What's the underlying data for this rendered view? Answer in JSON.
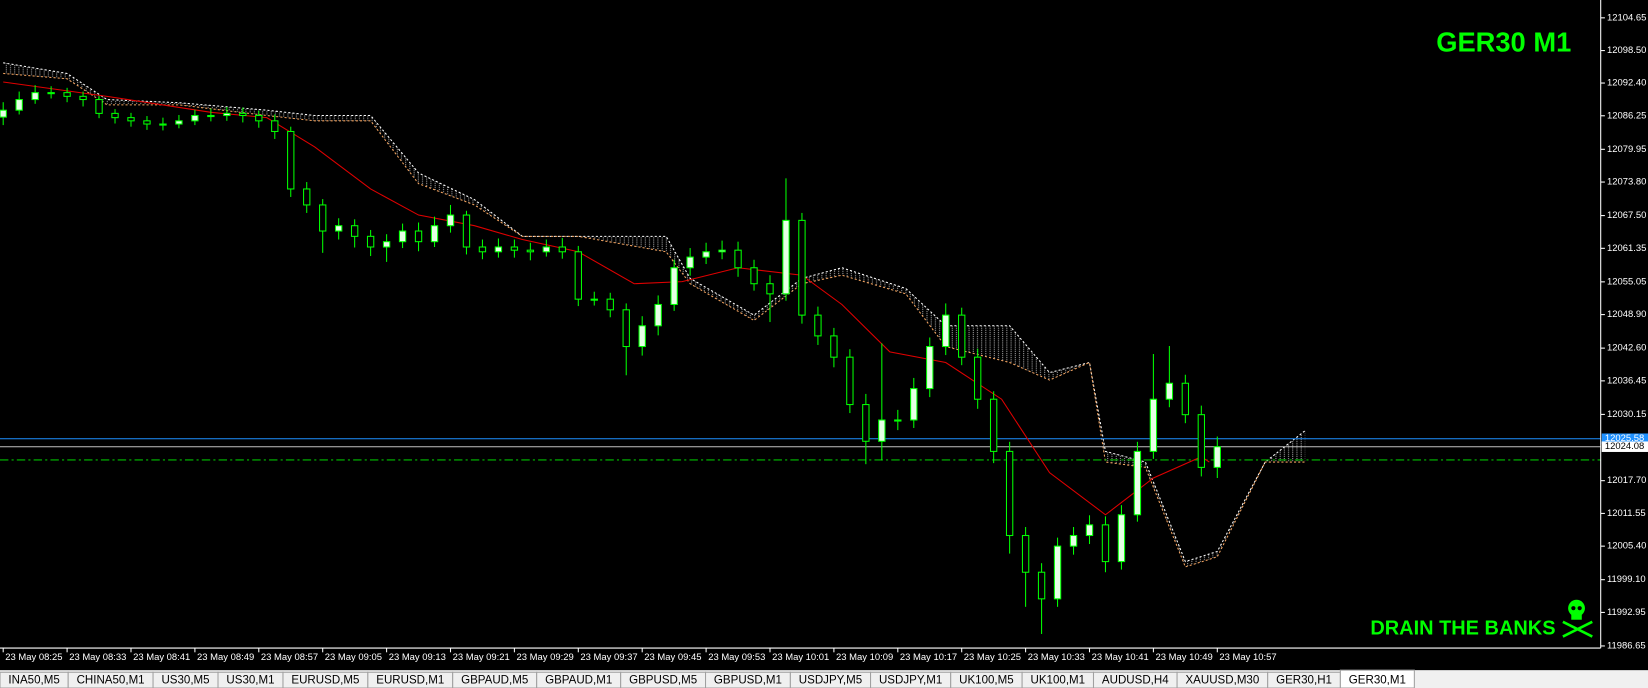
{
  "chart_data": {
    "type": "candlestick",
    "title": "GER30 M1",
    "watermark": "DRAIN THE BANKS",
    "xlim": [
      -0.4,
      200
    ],
    "ylim": [
      11986.25,
      12108.0
    ],
    "x": [
      0,
      2,
      4,
      6,
      8,
      10,
      12,
      14,
      16,
      18,
      20,
      22,
      24,
      26,
      28,
      30,
      32,
      34,
      36,
      38,
      40,
      42,
      44,
      46,
      48,
      50,
      52,
      54,
      56,
      58,
      60,
      62,
      64,
      66,
      68,
      70,
      72,
      74,
      76,
      78,
      80,
      82,
      84,
      86,
      88,
      90,
      92,
      94,
      96,
      98,
      100,
      102,
      104,
      106,
      108,
      110,
      112,
      114,
      116,
      118,
      120,
      122,
      124,
      126,
      128,
      130,
      132,
      134,
      136,
      138,
      140,
      142,
      144,
      146,
      148,
      150,
      152
    ],
    "open": [
      12086.0,
      12087.3,
      12089.3,
      12090.6,
      12090.6,
      12089.9,
      12089.3,
      12086.7,
      12085.9,
      12085.3,
      12084.7,
      12084.7,
      12085.3,
      12086.3,
      12086.3,
      12086.7,
      12086.3,
      12085.3,
      12083.3,
      12072.5,
      12069.5,
      12064.6,
      12065.6,
      12063.6,
      12061.6,
      12062.6,
      12064.6,
      12062.6,
      12065.6,
      12067.6,
      12061.6,
      12060.7,
      12061.6,
      12061.0,
      12060.7,
      12061.6,
      12060.7,
      12051.8,
      12051.8,
      12049.8,
      12042.9,
      12046.8,
      12050.8,
      12057.7,
      12059.7,
      12060.7,
      12061.0,
      12057.7,
      12054.7,
      12052.8,
      12066.6,
      12048.8,
      12044.9,
      12040.9,
      12032.0,
      12025.1,
      12029.1,
      12029.1,
      12035.0,
      12042.9,
      12048.8,
      12040.9,
      12033.0,
      12023.2,
      12007.4,
      12000.5,
      11995.5,
      12005.4,
      12007.4,
      12009.4,
      12002.5,
      12011.3,
      12023.2,
      12033.0,
      12036.0,
      12030.1,
      12020.2
    ],
    "high": [
      12088.8,
      12090.8,
      12092.0,
      12091.8,
      12091.5,
      12090.8,
      12090.0,
      12087.5,
      12086.8,
      12086.2,
      12085.9,
      12086.4,
      12087.4,
      12087.6,
      12087.9,
      12087.8,
      12087.2,
      12086.5,
      12084.2,
      12073.8,
      12070.6,
      12067.0,
      12066.8,
      12064.8,
      12064.0,
      12066.0,
      12066.2,
      12067.3,
      12069.5,
      12068.4,
      12063.0,
      12063.2,
      12063.0,
      12062.4,
      12063.0,
      12063.3,
      12061.8,
      12053.2,
      12053.0,
      12051.0,
      12048.6,
      12052.5,
      12059.2,
      12061.4,
      12062.4,
      12062.8,
      12062.6,
      12059.2,
      12056.3,
      12074.5,
      12068.0,
      12050.4,
      12046.4,
      12042.4,
      12034.0,
      12043.5,
      12031.0,
      12037.0,
      12044.6,
      12051.0,
      12050.2,
      12042.5,
      12034.5,
      12025.0,
      12009.0,
      12002.2,
      12007.0,
      12009.0,
      12011.2,
      12011.0,
      12013.1,
      12025.0,
      12041.5,
      12043.0,
      12037.6,
      12031.8,
      12026.0
    ],
    "low": [
      12084.5,
      12086.5,
      12088.5,
      12089.5,
      12088.8,
      12088.0,
      12085.8,
      12084.8,
      12084.2,
      12083.6,
      12083.5,
      12083.9,
      12084.5,
      12085.2,
      12085.3,
      12085.0,
      12084.0,
      12081.9,
      12071.0,
      12068.0,
      12060.5,
      12063.0,
      12061.5,
      12059.9,
      12058.8,
      12061.4,
      12060.8,
      12061.6,
      12064.3,
      12060.2,
      12059.3,
      12059.6,
      12059.6,
      12059.1,
      12059.8,
      12059.4,
      12050.5,
      12050.6,
      12048.4,
      12037.5,
      12041.2,
      12045.0,
      12049.6,
      12056.2,
      12058.4,
      12059.3,
      12056.0,
      12053.4,
      12047.5,
      12051.5,
      12047.2,
      12043.2,
      12039.0,
      12030.4,
      12020.8,
      12021.5,
      12027.2,
      12027.6,
      12033.4,
      12041.3,
      12039.4,
      12031.2,
      12021.0,
      12004.0,
      11994.0,
      11988.9,
      11994.0,
      12003.8,
      12005.8,
      12000.5,
      12001.0,
      12010.0,
      12021.8,
      12031.5,
      12028.5,
      12018.5,
      12018.2
    ],
    "close": [
      12087.3,
      12089.3,
      12090.6,
      12090.6,
      12089.9,
      12089.3,
      12086.7,
      12085.9,
      12085.3,
      12084.7,
      12084.7,
      12085.3,
      12086.3,
      12086.3,
      12086.7,
      12086.3,
      12085.3,
      12083.3,
      12072.5,
      12069.5,
      12064.6,
      12065.6,
      12063.6,
      12061.6,
      12062.6,
      12064.6,
      12062.6,
      12065.6,
      12067.6,
      12061.6,
      12060.7,
      12061.6,
      12061.0,
      12060.7,
      12061.6,
      12060.7,
      12051.8,
      12051.8,
      12049.8,
      12042.9,
      12046.8,
      12050.8,
      12057.7,
      12059.7,
      12060.7,
      12061.0,
      12057.7,
      12054.7,
      12052.8,
      12066.6,
      12048.8,
      12044.9,
      12040.9,
      12032.0,
      12025.1,
      12029.1,
      12029.1,
      12035.0,
      12042.9,
      12048.8,
      12040.9,
      12033.0,
      12023.2,
      12007.4,
      12000.5,
      11995.5,
      12005.4,
      12007.4,
      12009.4,
      12002.5,
      12011.3,
      12023.2,
      12033.0,
      12036.0,
      12030.1,
      12020.2,
      12024.08
    ],
    "color": "#00ff00",
    "ma": {
      "color": "#e00000",
      "x": [
        0,
        13,
        26,
        33,
        39,
        46,
        52,
        59,
        65,
        72,
        79,
        85,
        92,
        100,
        105,
        111,
        118,
        125,
        131,
        138,
        144,
        150,
        151
      ],
      "values": [
        12092.6,
        12089.9,
        12086.9,
        12085.9,
        12080.4,
        12072.5,
        12067.6,
        12065.6,
        12063.0,
        12060.7,
        12054.7,
        12055.1,
        12057.7,
        12056.3,
        12050.8,
        12041.9,
        12039.9,
        12033.0,
        12019.2,
        12011.3,
        12018.2,
        12022.2,
        12021.2
      ]
    },
    "cloud": {
      "color_a": "#ffffff",
      "color_b": "#f4a460",
      "x": [
        0,
        8,
        13,
        22,
        33,
        39,
        46,
        52,
        59,
        65,
        72,
        83,
        86,
        94,
        100,
        105,
        113,
        118,
        126,
        131,
        136,
        138,
        143,
        148,
        152,
        158,
        163
      ],
      "span_a": [
        12096.2,
        12094.2,
        12089.3,
        12088.7,
        12087.3,
        12086.3,
        12086.3,
        12075.5,
        12070.5,
        12063.6,
        12063.6,
        12063.6,
        12055.7,
        12048.8,
        12055.7,
        12057.7,
        12053.8,
        12046.8,
        12046.8,
        12038.0,
        12039.9,
        12023.2,
        12021.2,
        12002.5,
        12004.4,
        12021.2,
        12027.1
      ],
      "span_b": [
        12094.2,
        12093.2,
        12088.3,
        12088.3,
        12086.3,
        12085.3,
        12085.3,
        12073.5,
        12069.5,
        12063.6,
        12063.6,
        12060.7,
        12054.7,
        12047.8,
        12054.7,
        12056.3,
        12052.8,
        12042.9,
        12039.9,
        12036.6,
        12039.9,
        12021.2,
        12020.2,
        12001.5,
        12003.4,
        12021.2,
        12021.2
      ]
    },
    "levels": [
      {
        "value": 12025.58,
        "color": "#1e90ff",
        "printed": true
      },
      {
        "value": 12024.08,
        "color": "#c0c0c0",
        "printed": true
      },
      {
        "value": 12021.6,
        "color": "#00c000",
        "dashed": true
      }
    ],
    "yticks": [
      {
        "value": 12104.65,
        "label": "12104.65"
      },
      {
        "value": 12098.5,
        "label": "12098.50"
      },
      {
        "value": 12092.4,
        "label": "12092.40"
      },
      {
        "value": 12086.25,
        "label": "12086.25"
      },
      {
        "value": 12079.95,
        "label": "12079.95"
      },
      {
        "value": 12073.8,
        "label": "12073.80"
      },
      {
        "value": 12067.5,
        "label": "12067.50"
      },
      {
        "value": 12061.35,
        "label": "12061.35"
      },
      {
        "value": 12055.05,
        "label": "12055.05"
      },
      {
        "value": 12048.9,
        "label": "12048.90"
      },
      {
        "value": 12042.6,
        "label": "12042.60"
      },
      {
        "value": 12036.45,
        "label": "12036.45"
      },
      {
        "value": 12030.15,
        "label": "12030.15"
      },
      {
        "value": 12017.7,
        "label": "12017.70"
      },
      {
        "value": 12011.55,
        "label": "12011.55"
      },
      {
        "value": 12005.4,
        "label": "12005.40"
      },
      {
        "value": 11999.1,
        "label": "11999.10"
      },
      {
        "value": 11992.95,
        "label": "11992.95"
      },
      {
        "value": 11986.65,
        "label": "11986.65"
      }
    ],
    "xticks": [
      {
        "value": 0,
        "label": "23 May 08:25"
      },
      {
        "value": 8,
        "label": "23 May 08:33"
      },
      {
        "value": 16,
        "label": "23 May 08:41"
      },
      {
        "value": 24,
        "label": "23 May 08:49"
      },
      {
        "value": 32,
        "label": "23 May 08:57"
      },
      {
        "value": 40,
        "label": "23 May 09:05"
      },
      {
        "value": 48,
        "label": "23 May 09:13"
      },
      {
        "value": 56,
        "label": "23 May 09:21"
      },
      {
        "value": 64,
        "label": "23 May 09:29"
      },
      {
        "value": 72,
        "label": "23 May 09:37"
      },
      {
        "value": 80,
        "label": "23 May 09:45"
      },
      {
        "value": 88,
        "label": "23 May 09:53"
      },
      {
        "value": 96,
        "label": "23 May 10:01"
      },
      {
        "value": 104,
        "label": "23 May 10:09"
      },
      {
        "value": 112,
        "label": "23 May 10:17"
      },
      {
        "value": 120,
        "label": "23 May 10:25"
      },
      {
        "value": 128,
        "label": "23 May 10:33"
      },
      {
        "value": 136,
        "label": "23 May 10:41"
      },
      {
        "value": 144,
        "label": "23 May 10:49"
      },
      {
        "value": 152,
        "label": "23 May 10:57"
      }
    ]
  },
  "tabs": [
    "INA50,M5",
    "CHINA50,M1",
    "US30,M5",
    "US30,M1",
    "EURUSD,M5",
    "EURUSD,M1",
    "GBPAUD,M5",
    "GBPAUD,M1",
    "GBPUSD,M5",
    "GBPUSD,M1",
    "USDJPY,M5",
    "USDJPY,M1",
    "UK100,M5",
    "UK100,M1",
    "AUDUSD,H4",
    "XAUUSD,M30",
    "GER30,H1",
    "GER30,M1"
  ],
  "active_tab": 17
}
